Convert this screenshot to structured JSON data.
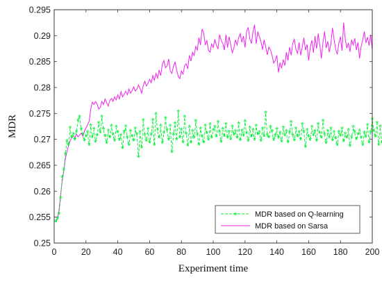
{
  "chart_data": {
    "type": "line",
    "title": "",
    "xlabel": "Experiment time",
    "ylabel": "MDR",
    "xlim": [
      0,
      200
    ],
    "ylim": [
      0.25,
      0.295
    ],
    "xticks": [
      0,
      20,
      40,
      60,
      80,
      100,
      120,
      140,
      160,
      180,
      200
    ],
    "yticks": [
      0.25,
      0.255,
      0.26,
      0.265,
      0.27,
      0.275,
      0.28,
      0.285,
      0.29,
      0.295
    ],
    "grid": false,
    "legend_position": "bottom-right",
    "series": [
      {
        "name": "MDR based on Q-learning",
        "color": "#00ee33",
        "line_style": "dashed",
        "marker": "asterisk",
        "x_start": 1,
        "x_step": 1,
        "values": [
          0.254,
          0.2545,
          0.2555,
          0.2585,
          0.2625,
          0.264,
          0.267,
          0.2695,
          0.2688,
          0.272,
          0.2703,
          0.2708,
          0.2698,
          0.2713,
          0.2735,
          0.2742,
          0.2718,
          0.2708,
          0.2697,
          0.2705,
          0.2712,
          0.2688,
          0.2725,
          0.2703,
          0.2718,
          0.2694,
          0.2706,
          0.273,
          0.2712,
          0.2742,
          0.2718,
          0.2705,
          0.2692,
          0.2715,
          0.2702,
          0.2724,
          0.2708,
          0.2696,
          0.2722,
          0.2712,
          0.2698,
          0.2706,
          0.2682,
          0.2713,
          0.2723,
          0.2702,
          0.2688,
          0.2714,
          0.2704,
          0.2696,
          0.2719,
          0.2708,
          0.2665,
          0.2712,
          0.2683,
          0.2735,
          0.2707,
          0.2696,
          0.2718,
          0.2693,
          0.2708,
          0.2736,
          0.2688,
          0.2747,
          0.2716,
          0.2702,
          0.2724,
          0.2692,
          0.2711,
          0.2739,
          0.2716,
          0.2698,
          0.2724,
          0.2674,
          0.2708,
          0.2729,
          0.2698,
          0.2752,
          0.2702,
          0.2717,
          0.2693,
          0.2742,
          0.2709,
          0.2687,
          0.2722,
          0.2692,
          0.2714,
          0.2702,
          0.2734,
          0.2708,
          0.2688,
          0.2719,
          0.2704,
          0.2693,
          0.2724,
          0.2711,
          0.2698,
          0.2727,
          0.2702,
          0.2716,
          0.2722,
          0.2704,
          0.2732,
          0.2712,
          0.2694,
          0.2718,
          0.2705,
          0.2728,
          0.2702,
          0.2713,
          0.2699,
          0.2723,
          0.2708,
          0.2714,
          0.2702,
          0.2729,
          0.2697,
          0.2715,
          0.2706,
          0.2733,
          0.2711,
          0.2696,
          0.2721,
          0.2704,
          0.2716,
          0.2698,
          0.2724,
          0.2708,
          0.2712,
          0.2696,
          0.2719,
          0.2705,
          0.275,
          0.2707,
          0.2702,
          0.2722,
          0.2714,
          0.2698,
          0.2706,
          0.2718,
          0.2702,
          0.2711,
          0.2695,
          0.2721,
          0.2707,
          0.2714,
          0.2693,
          0.2712,
          0.2732,
          0.2706,
          0.2697,
          0.2719,
          0.2704,
          0.2712,
          0.2698,
          0.2728,
          0.2713,
          0.2684,
          0.2716,
          0.2704,
          0.2698,
          0.2722,
          0.2707,
          0.2714,
          0.2696,
          0.2728,
          0.2711,
          0.2702,
          0.2734,
          0.2708,
          0.2692,
          0.2714,
          0.2703,
          0.2719,
          0.2697,
          0.2712,
          0.2701,
          0.2688,
          0.2713,
          0.2706,
          0.2719,
          0.2695,
          0.2709,
          0.2702,
          0.2716,
          0.2686,
          0.2703,
          0.2722,
          0.2712,
          0.2699,
          0.2708,
          0.2715,
          0.2702,
          0.2688,
          0.2711,
          0.2704,
          0.2726,
          0.2693,
          0.2712,
          0.2738,
          0.2715,
          0.2704,
          0.273,
          0.2688,
          0.2723,
          0.2692
        ]
      },
      {
        "name": "MDR based on Sarsa",
        "color": "#ee22ee",
        "line_style": "solid",
        "marker": "none",
        "x_start": 1,
        "x_step": 1,
        "values": [
          0.254,
          0.2548,
          0.2562,
          0.2592,
          0.2618,
          0.2638,
          0.2662,
          0.2676,
          0.2688,
          0.2697,
          0.2703,
          0.2707,
          0.2704,
          0.271,
          0.2705,
          0.2708,
          0.2712,
          0.2706,
          0.2715,
          0.2722,
          0.2728,
          0.2735,
          0.2758,
          0.2772,
          0.2767,
          0.2773,
          0.2768,
          0.2758,
          0.2762,
          0.2773,
          0.2767,
          0.2778,
          0.2771,
          0.2764,
          0.2775,
          0.2779,
          0.2773,
          0.2782,
          0.2776,
          0.2786,
          0.2778,
          0.2792,
          0.2782,
          0.2787,
          0.2793,
          0.2786,
          0.2797,
          0.2789,
          0.2794,
          0.2801,
          0.2793,
          0.2797,
          0.2805,
          0.2798,
          0.2789,
          0.2804,
          0.2812,
          0.2803,
          0.2808,
          0.2816,
          0.2809,
          0.2823,
          0.2814,
          0.2827,
          0.2818,
          0.2834,
          0.2823,
          0.2845,
          0.2852,
          0.2838,
          0.2842,
          0.2855,
          0.2832,
          0.2827,
          0.2841,
          0.2849,
          0.2834,
          0.2822,
          0.2817,
          0.2832,
          0.2826,
          0.2842,
          0.2846,
          0.2836,
          0.2862,
          0.2851,
          0.2868,
          0.2862,
          0.2879,
          0.2872,
          0.2896,
          0.2882,
          0.2913,
          0.2905,
          0.2882,
          0.2891,
          0.2872,
          0.2868,
          0.2884,
          0.2877,
          0.2893,
          0.2882,
          0.2874,
          0.2902,
          0.2891,
          0.2885,
          0.2872,
          0.2902,
          0.2877,
          0.2898,
          0.2882,
          0.2867,
          0.2876,
          0.2892,
          0.2882,
          0.2896,
          0.2904,
          0.2887,
          0.2899,
          0.2877,
          0.2908,
          0.2916,
          0.2894,
          0.2885,
          0.2907,
          0.2921,
          0.2884,
          0.2908,
          0.2898,
          0.2889,
          0.2873,
          0.2892,
          0.2878,
          0.2863,
          0.2878,
          0.2872,
          0.2862,
          0.2847,
          0.2852,
          0.2862,
          0.2829,
          0.2848,
          0.2837,
          0.2854,
          0.2842,
          0.2868,
          0.2852,
          0.2878,
          0.2862,
          0.2885,
          0.2893,
          0.2873,
          0.2866,
          0.2887,
          0.2862,
          0.2878,
          0.2896,
          0.2872,
          0.2883,
          0.2852,
          0.2877,
          0.2891,
          0.2867,
          0.2899,
          0.2875,
          0.2904,
          0.2882,
          0.2856,
          0.2887,
          0.2908,
          0.2876,
          0.2889,
          0.2868,
          0.2885,
          0.2915,
          0.2892,
          0.2874,
          0.2864,
          0.2886,
          0.2898,
          0.2871,
          0.2925,
          0.2893,
          0.2876,
          0.2886,
          0.2869,
          0.2892,
          0.2882,
          0.2895,
          0.2872,
          0.2887,
          0.2856,
          0.2879,
          0.2892,
          0.2908,
          0.2886,
          0.2897,
          0.2881,
          0.2902,
          0.2872
        ]
      }
    ]
  }
}
